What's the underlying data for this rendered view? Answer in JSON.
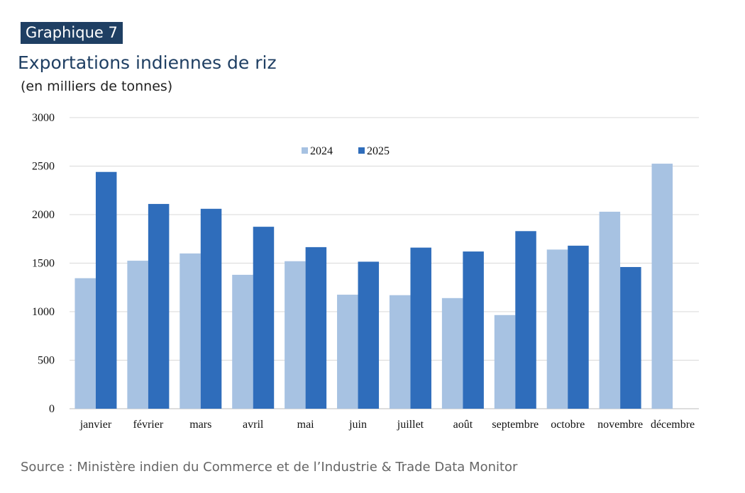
{
  "header": {
    "badge": "Graphique 7",
    "title": "Exportations indiennes de riz",
    "subtitle": "(en milliers de tonnes)"
  },
  "source": "Source : Ministère indien du Commerce et de l’Industrie & Trade Data Monitor",
  "chart_data": {
    "type": "bar",
    "title": "Exportations indiennes de riz",
    "ylabel": "en milliers de tonnes",
    "xlabel": "",
    "ylim": [
      0,
      3000
    ],
    "yticks": [
      0,
      500,
      1000,
      1500,
      2000,
      2500,
      3000
    ],
    "grid": true,
    "legend_position": "top-center",
    "categories": [
      "janvier",
      "février",
      "mars",
      "avril",
      "mai",
      "juin",
      "juillet",
      "août",
      "septembre",
      "octobre",
      "novembre",
      "décembre"
    ],
    "series": [
      {
        "name": "2024",
        "color": "#a7c2e2",
        "values": [
          1345,
          1525,
          1600,
          1380,
          1520,
          1175,
          1170,
          1140,
          965,
          1640,
          2030,
          2525
        ]
      },
      {
        "name": "2025",
        "color": "#2f6dbb",
        "values": [
          2440,
          2110,
          2060,
          1875,
          1665,
          1515,
          1660,
          1620,
          1830,
          1680,
          1460,
          null
        ]
      }
    ]
  }
}
